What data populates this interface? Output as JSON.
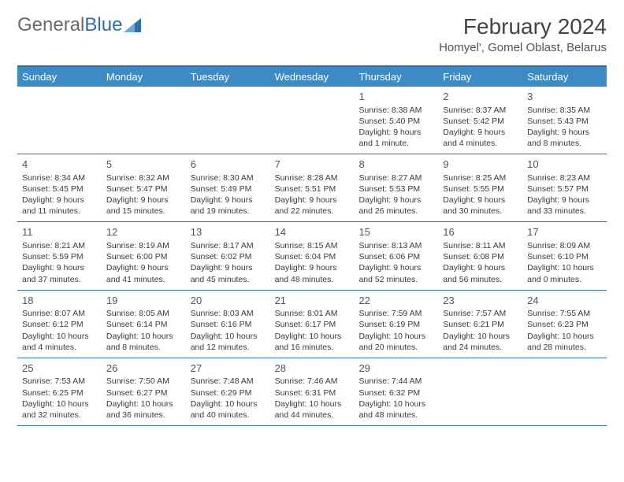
{
  "logo": {
    "word1": "General",
    "word2": "Blue"
  },
  "title": "February 2024",
  "location": "Homyel', Gomel Oblast, Belarus",
  "colors": {
    "header_bar": "#3b8bc4",
    "border": "#2f6fa8",
    "text": "#3a3a3a",
    "logo_blue": "#2f6fa8",
    "logo_gray": "#6a6a6a",
    "background": "#ffffff"
  },
  "typography": {
    "title_fontsize": 28,
    "location_fontsize": 15,
    "dow_fontsize": 13,
    "daynum_fontsize": 13,
    "body_fontsize": 10.5
  },
  "days_of_week": [
    "Sunday",
    "Monday",
    "Tuesday",
    "Wednesday",
    "Thursday",
    "Friday",
    "Saturday"
  ],
  "weeks": [
    [
      {
        "blank": true
      },
      {
        "blank": true
      },
      {
        "blank": true
      },
      {
        "blank": true
      },
      {
        "day": "1",
        "sunrise": "Sunrise: 8:38 AM",
        "sunset": "Sunset: 5:40 PM",
        "daylight": "Daylight: 9 hours and 1 minute."
      },
      {
        "day": "2",
        "sunrise": "Sunrise: 8:37 AM",
        "sunset": "Sunset: 5:42 PM",
        "daylight": "Daylight: 9 hours and 4 minutes."
      },
      {
        "day": "3",
        "sunrise": "Sunrise: 8:35 AM",
        "sunset": "Sunset: 5:43 PM",
        "daylight": "Daylight: 9 hours and 8 minutes."
      }
    ],
    [
      {
        "day": "4",
        "sunrise": "Sunrise: 8:34 AM",
        "sunset": "Sunset: 5:45 PM",
        "daylight": "Daylight: 9 hours and 11 minutes."
      },
      {
        "day": "5",
        "sunrise": "Sunrise: 8:32 AM",
        "sunset": "Sunset: 5:47 PM",
        "daylight": "Daylight: 9 hours and 15 minutes."
      },
      {
        "day": "6",
        "sunrise": "Sunrise: 8:30 AM",
        "sunset": "Sunset: 5:49 PM",
        "daylight": "Daylight: 9 hours and 19 minutes."
      },
      {
        "day": "7",
        "sunrise": "Sunrise: 8:28 AM",
        "sunset": "Sunset: 5:51 PM",
        "daylight": "Daylight: 9 hours and 22 minutes."
      },
      {
        "day": "8",
        "sunrise": "Sunrise: 8:27 AM",
        "sunset": "Sunset: 5:53 PM",
        "daylight": "Daylight: 9 hours and 26 minutes."
      },
      {
        "day": "9",
        "sunrise": "Sunrise: 8:25 AM",
        "sunset": "Sunset: 5:55 PM",
        "daylight": "Daylight: 9 hours and 30 minutes."
      },
      {
        "day": "10",
        "sunrise": "Sunrise: 8:23 AM",
        "sunset": "Sunset: 5:57 PM",
        "daylight": "Daylight: 9 hours and 33 minutes."
      }
    ],
    [
      {
        "day": "11",
        "sunrise": "Sunrise: 8:21 AM",
        "sunset": "Sunset: 5:59 PM",
        "daylight": "Daylight: 9 hours and 37 minutes."
      },
      {
        "day": "12",
        "sunrise": "Sunrise: 8:19 AM",
        "sunset": "Sunset: 6:00 PM",
        "daylight": "Daylight: 9 hours and 41 minutes."
      },
      {
        "day": "13",
        "sunrise": "Sunrise: 8:17 AM",
        "sunset": "Sunset: 6:02 PM",
        "daylight": "Daylight: 9 hours and 45 minutes."
      },
      {
        "day": "14",
        "sunrise": "Sunrise: 8:15 AM",
        "sunset": "Sunset: 6:04 PM",
        "daylight": "Daylight: 9 hours and 48 minutes."
      },
      {
        "day": "15",
        "sunrise": "Sunrise: 8:13 AM",
        "sunset": "Sunset: 6:06 PM",
        "daylight": "Daylight: 9 hours and 52 minutes."
      },
      {
        "day": "16",
        "sunrise": "Sunrise: 8:11 AM",
        "sunset": "Sunset: 6:08 PM",
        "daylight": "Daylight: 9 hours and 56 minutes."
      },
      {
        "day": "17",
        "sunrise": "Sunrise: 8:09 AM",
        "sunset": "Sunset: 6:10 PM",
        "daylight": "Daylight: 10 hours and 0 minutes."
      }
    ],
    [
      {
        "day": "18",
        "sunrise": "Sunrise: 8:07 AM",
        "sunset": "Sunset: 6:12 PM",
        "daylight": "Daylight: 10 hours and 4 minutes."
      },
      {
        "day": "19",
        "sunrise": "Sunrise: 8:05 AM",
        "sunset": "Sunset: 6:14 PM",
        "daylight": "Daylight: 10 hours and 8 minutes."
      },
      {
        "day": "20",
        "sunrise": "Sunrise: 8:03 AM",
        "sunset": "Sunset: 6:16 PM",
        "daylight": "Daylight: 10 hours and 12 minutes."
      },
      {
        "day": "21",
        "sunrise": "Sunrise: 8:01 AM",
        "sunset": "Sunset: 6:17 PM",
        "daylight": "Daylight: 10 hours and 16 minutes."
      },
      {
        "day": "22",
        "sunrise": "Sunrise: 7:59 AM",
        "sunset": "Sunset: 6:19 PM",
        "daylight": "Daylight: 10 hours and 20 minutes."
      },
      {
        "day": "23",
        "sunrise": "Sunrise: 7:57 AM",
        "sunset": "Sunset: 6:21 PM",
        "daylight": "Daylight: 10 hours and 24 minutes."
      },
      {
        "day": "24",
        "sunrise": "Sunrise: 7:55 AM",
        "sunset": "Sunset: 6:23 PM",
        "daylight": "Daylight: 10 hours and 28 minutes."
      }
    ],
    [
      {
        "day": "25",
        "sunrise": "Sunrise: 7:53 AM",
        "sunset": "Sunset: 6:25 PM",
        "daylight": "Daylight: 10 hours and 32 minutes."
      },
      {
        "day": "26",
        "sunrise": "Sunrise: 7:50 AM",
        "sunset": "Sunset: 6:27 PM",
        "daylight": "Daylight: 10 hours and 36 minutes."
      },
      {
        "day": "27",
        "sunrise": "Sunrise: 7:48 AM",
        "sunset": "Sunset: 6:29 PM",
        "daylight": "Daylight: 10 hours and 40 minutes."
      },
      {
        "day": "28",
        "sunrise": "Sunrise: 7:46 AM",
        "sunset": "Sunset: 6:31 PM",
        "daylight": "Daylight: 10 hours and 44 minutes."
      },
      {
        "day": "29",
        "sunrise": "Sunrise: 7:44 AM",
        "sunset": "Sunset: 6:32 PM",
        "daylight": "Daylight: 10 hours and 48 minutes."
      },
      {
        "blank": true
      },
      {
        "blank": true
      }
    ]
  ]
}
